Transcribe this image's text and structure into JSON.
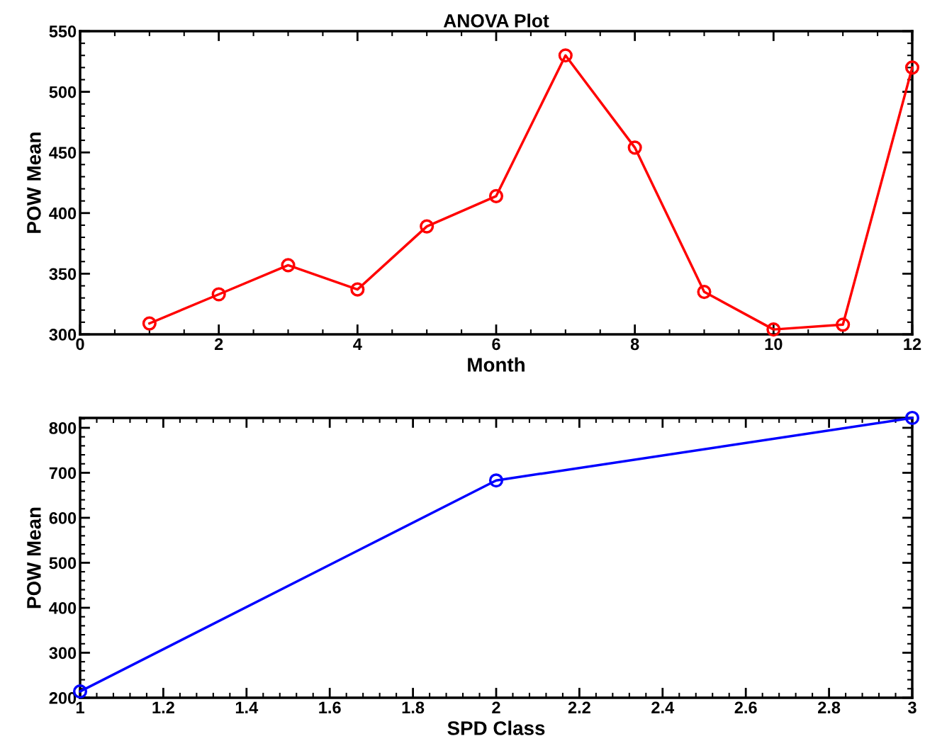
{
  "chart_data": [
    {
      "type": "line",
      "title": "ANOVA Plot",
      "xlabel": "Month",
      "ylabel": "POW Mean",
      "x": [
        1,
        2,
        3,
        4,
        5,
        6,
        7,
        8,
        9,
        10,
        11,
        12
      ],
      "series": [
        {
          "color": "#ff0000",
          "values": [
            309,
            333,
            357,
            337,
            389,
            414,
            530,
            454,
            335,
            304,
            308,
            520
          ]
        }
      ],
      "xlim": [
        0,
        12
      ],
      "xticks": [
        0,
        2,
        4,
        6,
        8,
        10,
        12
      ],
      "ylim": [
        300,
        550
      ],
      "yticks": [
        300,
        350,
        400,
        450,
        500,
        550
      ],
      "marker": "circle",
      "line_style": "solid",
      "grid": false,
      "legend": false
    },
    {
      "type": "line",
      "xlabel": "SPD Class",
      "ylabel": "POW Mean",
      "x": [
        1,
        2,
        3
      ],
      "series": [
        {
          "color": "#0000ff",
          "values": [
            214,
            683,
            822
          ]
        }
      ],
      "xlim": [
        1,
        3
      ],
      "xticks": [
        1,
        1.2,
        1.4,
        1.6,
        1.8,
        2,
        2.2,
        2.4,
        2.6,
        2.8,
        3
      ],
      "ylim": [
        200,
        822
      ],
      "yticks": [
        200,
        300,
        400,
        500,
        600,
        700,
        800
      ],
      "marker": "circle",
      "line_style": "solid",
      "grid": false,
      "legend": false
    }
  ]
}
